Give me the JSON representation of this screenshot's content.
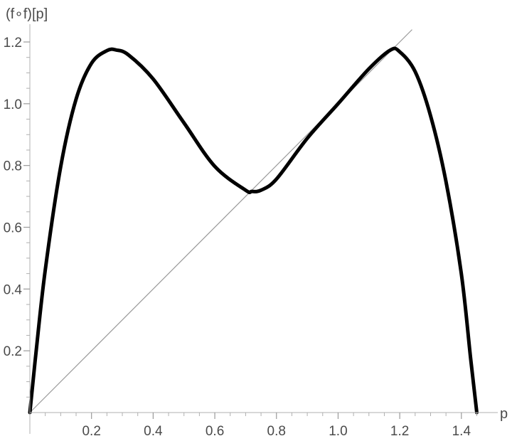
{
  "chart_data": {
    "type": "line",
    "title": "",
    "xlabel": "p",
    "ylabel": "(f∘f)[p]",
    "xlim": [
      0,
      1.45
    ],
    "ylim": [
      0,
      1.2
    ],
    "x_ticks": [
      0.2,
      0.4,
      0.6,
      0.8,
      1.0,
      1.2,
      1.4
    ],
    "x_tick_labels": [
      "0.2",
      "0.4",
      "0.6",
      "0.8",
      "1.0",
      "1.2",
      "1.4"
    ],
    "y_ticks": [
      0.2,
      0.4,
      0.6,
      0.8,
      1.0,
      1.2
    ],
    "y_tick_labels": [
      "0.2",
      "0.4",
      "0.6",
      "0.8",
      "1.0",
      "1.2"
    ],
    "grid": false,
    "series": [
      {
        "color": "#000000",
        "x": [
          0,
          0.02,
          0.05,
          0.1,
          0.15,
          0.2,
          0.25,
          0.28,
          0.32,
          0.4,
          0.5,
          0.6,
          0.7,
          0.72,
          0.75,
          0.8,
          0.9,
          1.0,
          1.1,
          1.17,
          1.2,
          1.25,
          1.3,
          1.35,
          1.4,
          1.43,
          1.45
        ],
        "y": [
          0,
          0.195,
          0.462,
          0.796,
          1.015,
          1.131,
          1.172,
          1.174,
          1.158,
          1.08,
          0.938,
          0.797,
          0.72,
          0.716,
          0.72,
          0.756,
          0.888,
          1.0,
          1.113,
          1.174,
          1.168,
          1.104,
          0.961,
          0.748,
          0.448,
          0.175,
          0
        ]
      },
      {
        "color": "#999999",
        "x": [
          0,
          1.24
        ],
        "y": [
          0,
          1.24
        ]
      }
    ]
  }
}
